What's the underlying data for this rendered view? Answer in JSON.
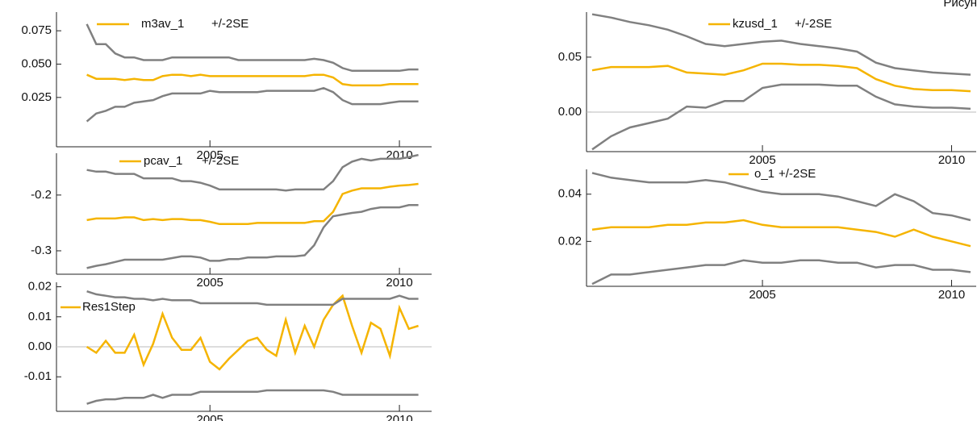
{
  "page_text": "Рисун",
  "chart_data": [
    {
      "type": "line",
      "x": [
        2001.75,
        2002,
        2002.25,
        2002.5,
        2002.75,
        2003,
        2003.25,
        2003.5,
        2003.75,
        2004,
        2004.25,
        2004.5,
        2004.75,
        2005,
        2005.25,
        2005.5,
        2005.75,
        2006,
        2006.25,
        2006.5,
        2006.75,
        2007,
        2007.25,
        2007.5,
        2007.75,
        2008,
        2008.25,
        2008.5,
        2008.75,
        2009,
        2009.25,
        2009.5,
        2009.75,
        2010,
        2010.25,
        2010.5
      ],
      "xlim": [
        2000.95,
        2010.85
      ],
      "xticks": [
        2005,
        2010
      ],
      "ylim": [
        -0.012,
        0.089
      ],
      "yticks": [
        0.025,
        {
          "value": 0.05,
          "label": "0.050"
        },
        0.075
      ],
      "zero_line": false,
      "series": [
        {
          "name": "m3av_1",
          "color": "#f5b400",
          "values": [
            0.042,
            0.039,
            0.039,
            0.039,
            0.038,
            0.039,
            0.038,
            0.038,
            0.041,
            0.042,
            0.042,
            0.041,
            0.042,
            0.041,
            0.041,
            0.041,
            0.041,
            0.041,
            0.041,
            0.041,
            0.041,
            0.041,
            0.041,
            0.041,
            0.042,
            0.042,
            0.04,
            0.035,
            0.034,
            0.034,
            0.034,
            0.034,
            0.035,
            0.035,
            0.035,
            0.035
          ]
        },
        {
          "name": "+/-2SE",
          "color": "#808080",
          "upper": [
            0.08,
            0.065,
            0.065,
            0.058,
            0.055,
            0.055,
            0.053,
            0.053,
            0.053,
            0.055,
            0.055,
            0.055,
            0.055,
            0.055,
            0.055,
            0.055,
            0.053,
            0.053,
            0.053,
            0.053,
            0.053,
            0.053,
            0.053,
            0.053,
            0.054,
            0.053,
            0.051,
            0.047,
            0.045,
            0.045,
            0.045,
            0.045,
            0.045,
            0.045,
            0.046,
            0.046
          ],
          "lower": [
            0.007,
            0.013,
            0.015,
            0.018,
            0.018,
            0.021,
            0.022,
            0.023,
            0.026,
            0.028,
            0.028,
            0.028,
            0.028,
            0.03,
            0.029,
            0.029,
            0.029,
            0.029,
            0.029,
            0.03,
            0.03,
            0.03,
            0.03,
            0.03,
            0.03,
            0.032,
            0.029,
            0.023,
            0.02,
            0.02,
            0.02,
            0.02,
            0.021,
            0.022,
            0.022,
            0.022
          ]
        }
      ]
    },
    {
      "type": "line",
      "x": [
        2001.75,
        2002,
        2002.25,
        2002.5,
        2002.75,
        2003,
        2003.25,
        2003.5,
        2003.75,
        2004,
        2004.25,
        2004.5,
        2004.75,
        2005,
        2005.25,
        2005.5,
        2005.75,
        2006,
        2006.25,
        2006.5,
        2006.75,
        2007,
        2007.25,
        2007.5,
        2007.75,
        2008,
        2008.25,
        2008.5,
        2008.75,
        2009,
        2009.25,
        2009.5,
        2009.75,
        2010,
        2010.25,
        2010.5
      ],
      "xlim": [
        2000.95,
        2010.85
      ],
      "xticks": [
        2005,
        2010
      ],
      "ylim": [
        -0.342,
        -0.125
      ],
      "yticks": [
        -0.3,
        -0.2
      ],
      "zero_line": false,
      "series": [
        {
          "name": "pcav_1",
          "color": "#f5b400",
          "values": [
            -0.245,
            -0.242,
            -0.242,
            -0.242,
            -0.24,
            -0.24,
            -0.245,
            -0.243,
            -0.245,
            -0.243,
            -0.243,
            -0.245,
            -0.245,
            -0.248,
            -0.252,
            -0.252,
            -0.252,
            -0.252,
            -0.25,
            -0.25,
            -0.25,
            -0.25,
            -0.25,
            -0.25,
            -0.247,
            -0.247,
            -0.23,
            -0.198,
            -0.192,
            -0.188,
            -0.188,
            -0.188,
            -0.185,
            -0.183,
            -0.182,
            -0.18
          ]
        },
        {
          "name": "+/-2SE",
          "color": "#808080",
          "upper": [
            -0.155,
            -0.158,
            -0.158,
            -0.162,
            -0.162,
            -0.162,
            -0.17,
            -0.17,
            -0.17,
            -0.17,
            -0.175,
            -0.175,
            -0.178,
            -0.183,
            -0.19,
            -0.19,
            -0.19,
            -0.19,
            -0.19,
            -0.19,
            -0.19,
            -0.192,
            -0.19,
            -0.19,
            -0.19,
            -0.19,
            -0.175,
            -0.15,
            -0.14,
            -0.135,
            -0.138,
            -0.135,
            -0.135,
            -0.135,
            -0.132,
            -0.128
          ],
          "lower": [
            -0.331,
            -0.327,
            -0.324,
            -0.32,
            -0.316,
            -0.316,
            -0.316,
            -0.316,
            -0.316,
            -0.313,
            -0.31,
            -0.31,
            -0.312,
            -0.318,
            -0.318,
            -0.315,
            -0.315,
            -0.312,
            -0.312,
            -0.312,
            -0.31,
            -0.31,
            -0.31,
            -0.308,
            -0.29,
            -0.258,
            -0.238,
            -0.235,
            -0.232,
            -0.23,
            -0.225,
            -0.222,
            -0.222,
            -0.222,
            -0.218,
            -0.218
          ]
        }
      ]
    },
    {
      "type": "line",
      "x": [
        2001.75,
        2002,
        2002.25,
        2002.5,
        2002.75,
        2003,
        2003.25,
        2003.5,
        2003.75,
        2004,
        2004.25,
        2004.5,
        2004.75,
        2005,
        2005.25,
        2005.5,
        2005.75,
        2006,
        2006.25,
        2006.5,
        2006.75,
        2007,
        2007.25,
        2007.5,
        2007.75,
        2008,
        2008.25,
        2008.5,
        2008.75,
        2009,
        2009.25,
        2009.5,
        2009.75,
        2010,
        2010.25,
        2010.5
      ],
      "xlim": [
        2000.95,
        2010.85
      ],
      "xticks": [
        2005,
        2010
      ],
      "ylim": [
        -0.0215,
        0.0215
      ],
      "yticks": [
        -0.01,
        {
          "value": 0,
          "label": "0.00"
        },
        0.01,
        0.02
      ],
      "zero_line": true,
      "series": [
        {
          "name": "Res1Step",
          "color": "#f5b400",
          "values": [
            0.0,
            -0.002,
            0.002,
            -0.002,
            -0.002,
            0.004,
            -0.006,
            0.001,
            0.011,
            0.003,
            -0.001,
            -0.001,
            0.003,
            -0.005,
            -0.0075,
            -0.004,
            -0.001,
            0.002,
            0.003,
            -0.001,
            -0.003,
            0.009,
            -0.002,
            0.007,
            0.0,
            0.009,
            0.014,
            0.017,
            0.007,
            -0.002,
            0.008,
            0.006,
            -0.003,
            0.013,
            0.006,
            0.007
          ]
        },
        {
          "color": "#808080",
          "upper": [
            0.0185,
            0.0175,
            0.017,
            0.0165,
            0.0165,
            0.016,
            0.016,
            0.0155,
            0.016,
            0.0155,
            0.0155,
            0.0155,
            0.0145,
            0.0145,
            0.0145,
            0.0145,
            0.0145,
            0.0145,
            0.0145,
            0.014,
            0.014,
            0.014,
            0.014,
            0.014,
            0.014,
            0.014,
            0.014,
            0.016,
            0.016,
            0.016,
            0.016,
            0.016,
            0.016,
            0.017,
            0.016,
            0.016
          ],
          "lower": [
            -0.019,
            -0.018,
            -0.0175,
            -0.0175,
            -0.017,
            -0.017,
            -0.017,
            -0.016,
            -0.017,
            -0.016,
            -0.016,
            -0.016,
            -0.015,
            -0.015,
            -0.015,
            -0.015,
            -0.015,
            -0.015,
            -0.015,
            -0.0145,
            -0.0145,
            -0.0145,
            -0.0145,
            -0.0145,
            -0.0145,
            -0.0145,
            -0.015,
            -0.016,
            -0.016,
            -0.016,
            -0.016,
            -0.016,
            -0.016,
            -0.016,
            -0.016,
            -0.016
          ]
        }
      ]
    },
    {
      "type": "line",
      "x": [
        2000.5,
        2001,
        2001.5,
        2002,
        2002.5,
        2003,
        2003.5,
        2004,
        2004.5,
        2005,
        2005.5,
        2006,
        2006.5,
        2007,
        2007.5,
        2008,
        2008.5,
        2009,
        2009.5,
        2010,
        2010.5
      ],
      "xlim": [
        2000.35,
        2010.65
      ],
      "xticks": [
        2005,
        2010
      ],
      "ylim": [
        -0.036,
        0.091
      ],
      "yticks": [
        {
          "value": 0,
          "label": "0.00"
        },
        0.05
      ],
      "zero_line": true,
      "series": [
        {
          "name": "kzusd_1",
          "color": "#f5b400",
          "values": [
            0.038,
            0.041,
            0.041,
            0.041,
            0.042,
            0.036,
            0.035,
            0.034,
            0.038,
            0.044,
            0.044,
            0.043,
            0.043,
            0.042,
            0.04,
            0.03,
            0.024,
            0.021,
            0.02,
            0.02,
            0.019
          ]
        },
        {
          "name": "+/-2SE",
          "color": "#808080",
          "upper": [
            0.089,
            0.086,
            0.082,
            0.079,
            0.075,
            0.069,
            0.062,
            0.06,
            0.062,
            0.064,
            0.065,
            0.062,
            0.06,
            0.058,
            0.055,
            0.045,
            0.04,
            0.038,
            0.036,
            0.035,
            0.034
          ],
          "lower": [
            -0.034,
            -0.022,
            -0.014,
            -0.01,
            -0.006,
            0.005,
            0.004,
            0.01,
            0.01,
            0.022,
            0.025,
            0.025,
            0.025,
            0.024,
            0.024,
            0.014,
            0.007,
            0.005,
            0.004,
            0.004,
            0.003
          ]
        }
      ]
    },
    {
      "type": "line",
      "x": [
        2000.5,
        2001,
        2001.5,
        2002,
        2002.5,
        2003,
        2003.5,
        2004,
        2004.5,
        2005,
        2005.5,
        2006,
        2006.5,
        2007,
        2007.5,
        2008,
        2008.5,
        2009,
        2009.5,
        2010,
        2010.5
      ],
      "xlim": [
        2000.35,
        2010.65
      ],
      "xticks": [
        2005,
        2010
      ],
      "ylim": [
        0.001,
        0.0505
      ],
      "yticks": [
        0.02,
        0.04
      ],
      "zero_line": false,
      "series": [
        {
          "name": "o_1",
          "color": "#f5b400",
          "values": [
            0.025,
            0.026,
            0.026,
            0.026,
            0.027,
            0.027,
            0.028,
            0.028,
            0.029,
            0.027,
            0.026,
            0.026,
            0.026,
            0.026,
            0.025,
            0.024,
            0.022,
            0.025,
            0.022,
            0.02,
            0.018
          ]
        },
        {
          "name": "+/-2SE",
          "color": "#808080",
          "upper": [
            0.049,
            0.047,
            0.046,
            0.045,
            0.045,
            0.045,
            0.046,
            0.045,
            0.043,
            0.041,
            0.04,
            0.04,
            0.04,
            0.039,
            0.037,
            0.035,
            0.04,
            0.037,
            0.032,
            0.031,
            0.029
          ],
          "lower": [
            0.002,
            0.006,
            0.006,
            0.007,
            0.008,
            0.009,
            0.01,
            0.01,
            0.012,
            0.011,
            0.011,
            0.012,
            0.012,
            0.011,
            0.011,
            0.009,
            0.01,
            0.01,
            0.008,
            0.008,
            0.007
          ]
        }
      ]
    }
  ]
}
